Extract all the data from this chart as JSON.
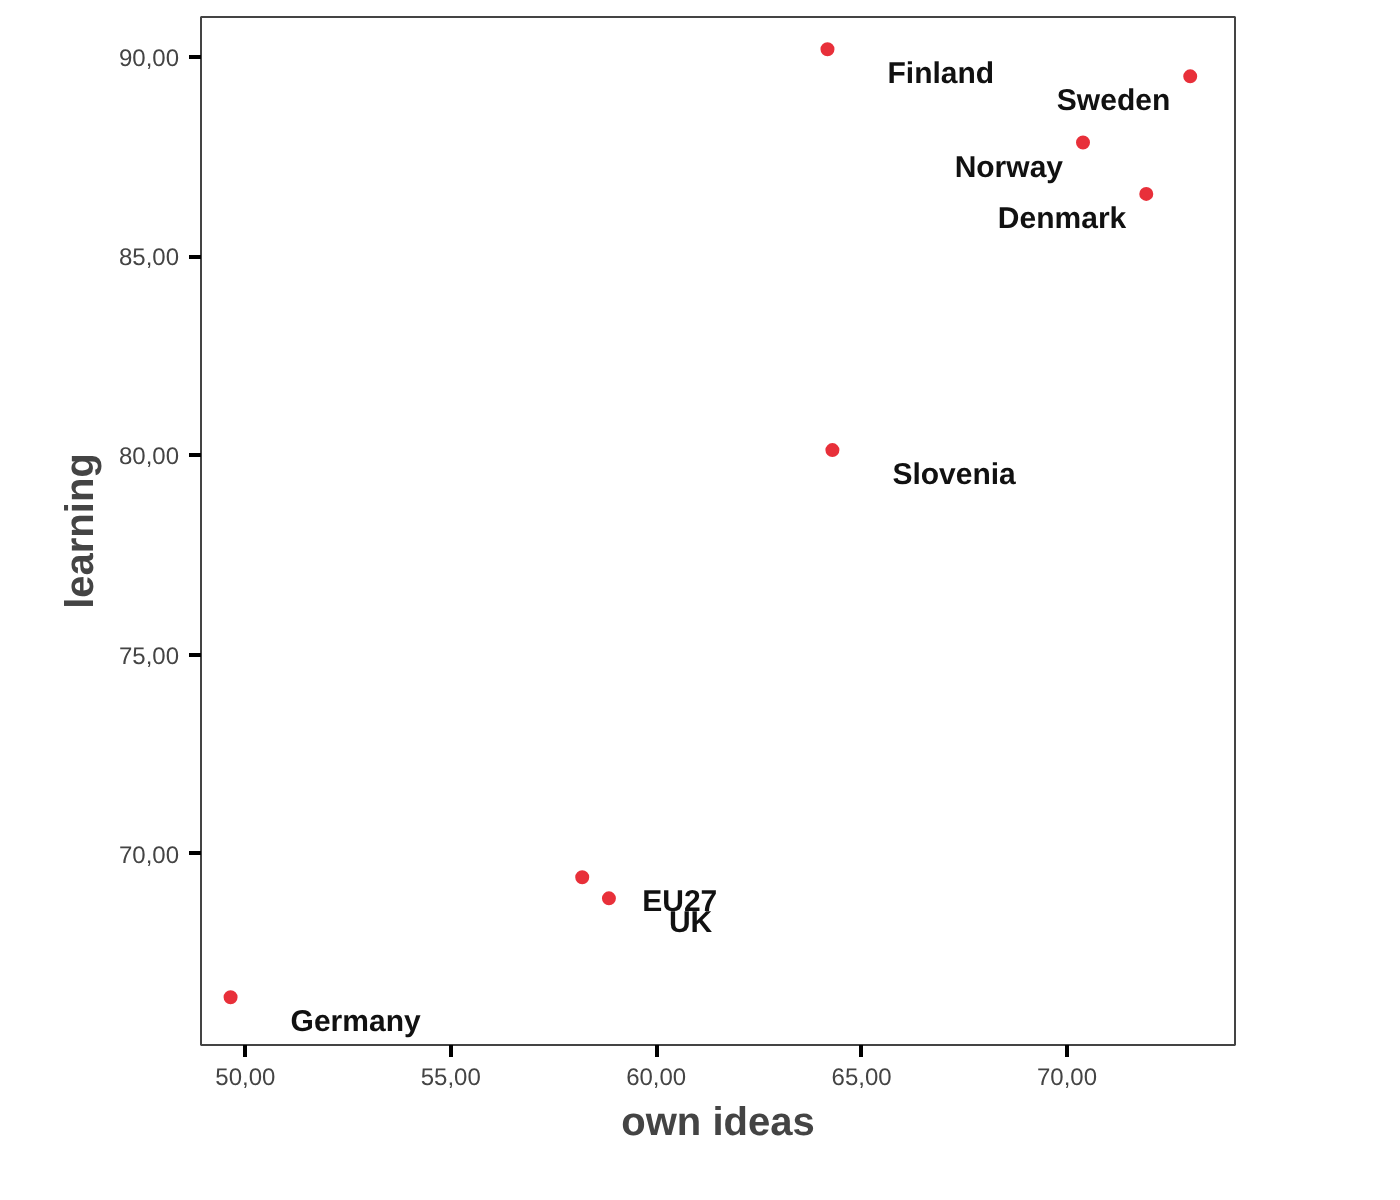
{
  "chart_data": {
    "type": "scatter",
    "xlabel": "own ideas",
    "ylabel": "learning",
    "x": [
      64.17,
      73.0,
      70.39,
      71.93,
      64.29,
      58.2,
      58.85,
      49.64
    ],
    "series": [
      {
        "color": "#e8303a",
        "values": [
          90.19,
          89.51,
          87.85,
          86.56,
          80.13,
          69.41,
          68.88,
          66.4
        ]
      }
    ],
    "annotations": [
      {
        "text": "Finland",
        "x": 64.17,
        "y": 90.19
      },
      {
        "text": "Sweden",
        "x": 73.0,
        "y": 89.51
      },
      {
        "text": "Norway",
        "x": 70.39,
        "y": 87.85
      },
      {
        "text": "Denmark",
        "x": 71.93,
        "y": 86.56
      },
      {
        "text": "Slovenia",
        "x": 64.29,
        "y": 80.13
      },
      {
        "text": "EU27",
        "x": 58.2,
        "y": 69.41
      },
      {
        "text": "UK",
        "x": 58.85,
        "y": 68.88
      },
      {
        "text": "Germany",
        "x": 49.64,
        "y": 66.4
      }
    ],
    "xlim": [
      48.92,
      74.09
    ],
    "ylim": [
      65.2,
      91.0
    ],
    "xticks": [
      {
        "value": 50,
        "label": "50,00"
      },
      {
        "value": 55,
        "label": "55,00"
      },
      {
        "value": 60,
        "label": "60,00"
      },
      {
        "value": 65,
        "label": "65,00"
      },
      {
        "value": 70,
        "label": "70,00"
      }
    ],
    "yticks": [
      {
        "value": 70,
        "label": "70,00"
      },
      {
        "value": 75,
        "label": "75,00"
      },
      {
        "value": 80,
        "label": "80,00"
      },
      {
        "value": 85,
        "label": "85,00"
      },
      {
        "value": 90,
        "label": "90,00"
      }
    ],
    "marker": "circle",
    "grid": false
  }
}
